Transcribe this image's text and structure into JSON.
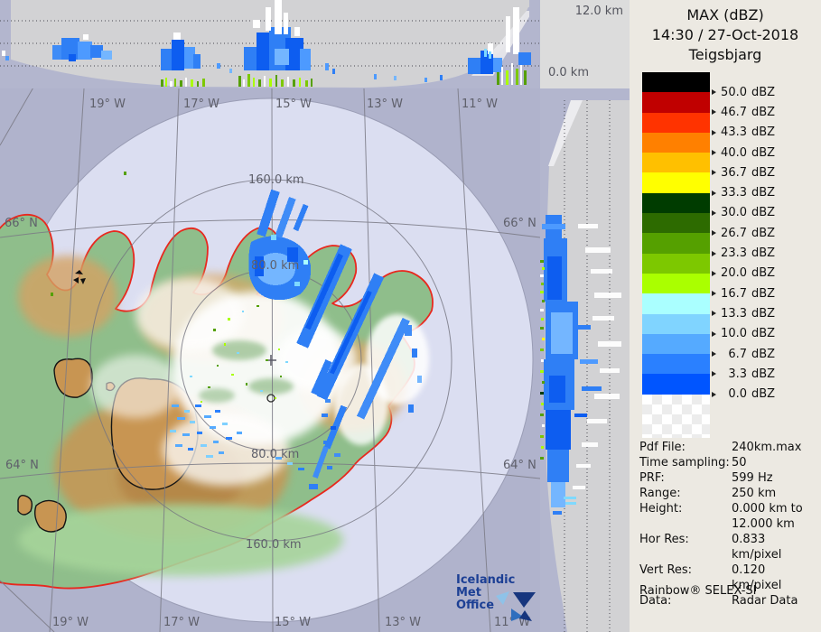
{
  "legend": {
    "title": "MAX (dBZ)",
    "datetime": "14:30 / 27-Oct-2018",
    "station": "Teigsbjarg"
  },
  "corner": {
    "top_height": "12.0 km",
    "bottom_height": "0.0 km"
  },
  "scale": {
    "unit": "dBZ",
    "entries": [
      {
        "value": "50.0",
        "color": "#000000"
      },
      {
        "value": "46.7",
        "color": "#c00000"
      },
      {
        "value": "43.3",
        "color": "#ff3300"
      },
      {
        "value": "40.0",
        "color": "#ff8000"
      },
      {
        "value": "36.7",
        "color": "#ffc000"
      },
      {
        "value": "33.3",
        "color": "#ffff00"
      },
      {
        "value": "30.0",
        "color": "#003c00"
      },
      {
        "value": "26.7",
        "color": "#2d6b00"
      },
      {
        "value": "23.3",
        "color": "#55a000"
      },
      {
        "value": "20.0",
        "color": "#7dc800"
      },
      {
        "value": "16.7",
        "color": "#aaff00"
      },
      {
        "value": "13.3",
        "color": "#aaffff"
      },
      {
        "value": "10.0",
        "color": "#80d4ff"
      },
      {
        "value": "6.7",
        "color": "#55aaff"
      },
      {
        "value": "3.3",
        "color": "#2a80ff"
      },
      {
        "value": "0.0",
        "color": "#0055ff"
      }
    ]
  },
  "info": {
    "rows": [
      {
        "label": "Pdf File:",
        "value": "240km.max"
      },
      {
        "label": "Time sampling:",
        "value": "50"
      },
      {
        "label": "PRF:",
        "value": "599 Hz"
      },
      {
        "label": "Range:",
        "value": "250 km"
      },
      {
        "label": "Height:",
        "value": "0.000 km to"
      },
      {
        "label": "",
        "value": "12.000 km"
      },
      {
        "label": "Hor Res:",
        "value": "0.833 km/pixel"
      },
      {
        "label": "Vert Res:",
        "value": "0.120 km/pixel"
      },
      {
        "label": "Data:",
        "value": "Radar Data"
      }
    ],
    "footer": "Rainbow® SELEX-SI"
  },
  "map": {
    "lon_labels": [
      "19° W",
      "17° W",
      "15° W",
      "13° W",
      "11° W"
    ],
    "lat_labels": [
      "66° N",
      "64° N"
    ],
    "ring_labels": {
      "r160": "160.0 km",
      "r80": "80.0 km"
    },
    "logo": {
      "line1": "Icelandic Met",
      "line2": "Office"
    },
    "colors": {
      "sea_outer": "#b0b3cc",
      "sea_inner": "#dbdef1",
      "land": "#8fbe8b",
      "highland": "#c89552",
      "coastline": "#e8281e",
      "echo_blue": "#2f7ff5",
      "echo_dark": "#0d5df0",
      "echo_light": "#74b6ff"
    }
  }
}
